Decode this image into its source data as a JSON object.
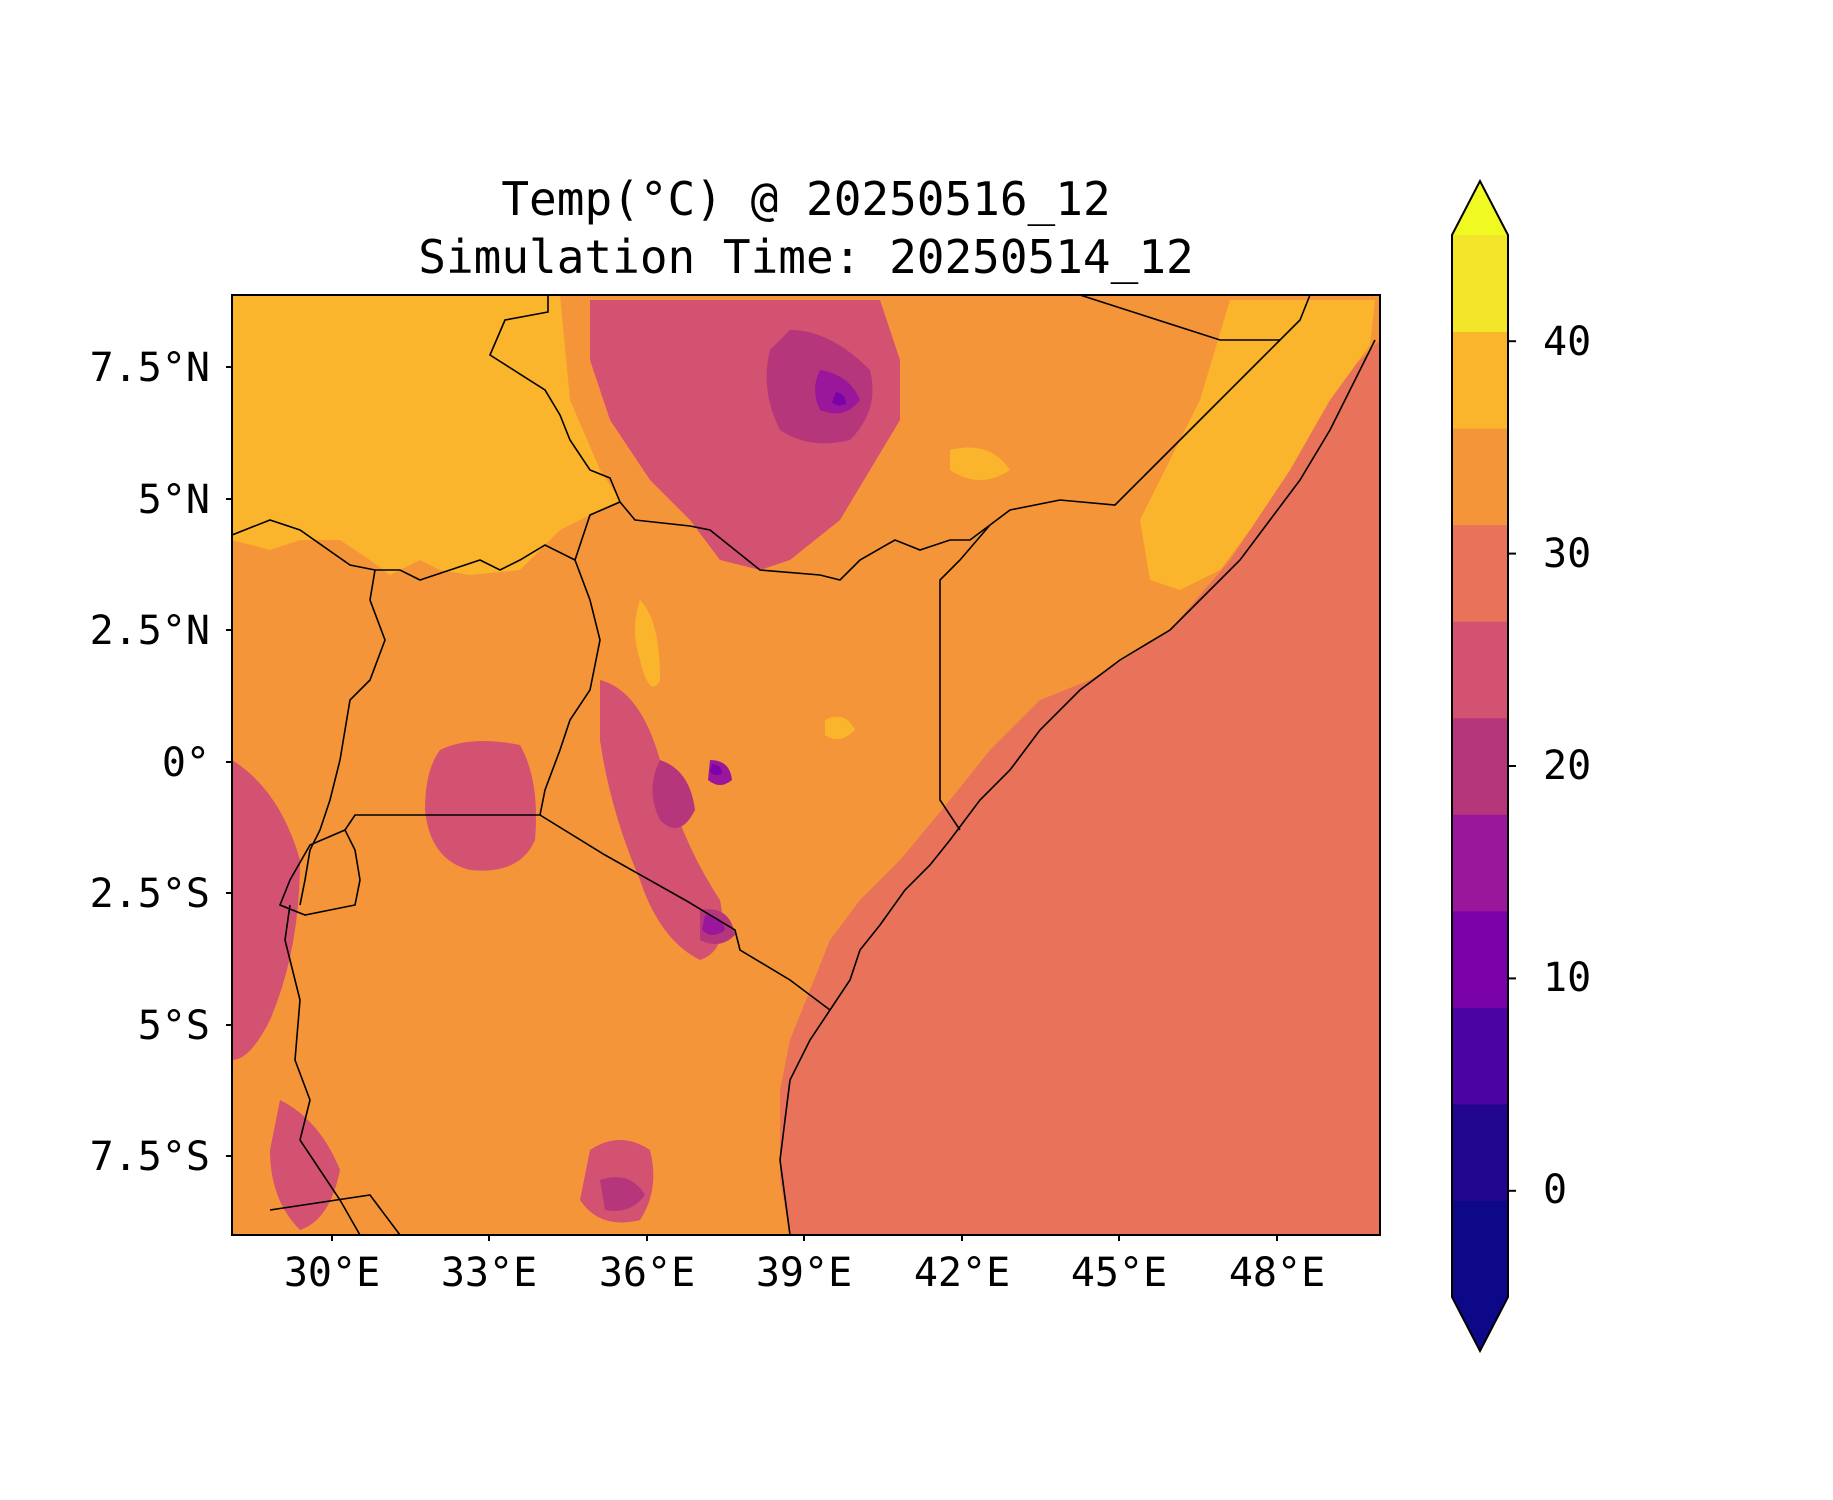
{
  "map": {
    "title_line1": "Temp(°C) @ 20250516_12",
    "title_line2": "Simulation Time: 20250514_12",
    "y_ticks": [
      "7.5°N",
      "5°N",
      "2.5°N",
      "0°",
      "2.5°S",
      "5°S",
      "7.5°S"
    ],
    "x_ticks": [
      "30°E",
      "33°E",
      "36°E",
      "39°E",
      "42°E",
      "45°E",
      "48°E"
    ],
    "extent": {
      "lon_min": 28.1,
      "lon_max": 50.0,
      "lat_min": -9.0,
      "lat_max": 8.9
    },
    "variable": "Temperature",
    "units": "°C"
  },
  "colorbar": {
    "ticks": [
      "0",
      "10",
      "20",
      "30",
      "40"
    ],
    "levels": [
      -5,
      0,
      5,
      10,
      15,
      20,
      25,
      30,
      35,
      40,
      45
    ],
    "colors": [
      "#0d0887",
      "#220690",
      "#4b03a1",
      "#7a02a8",
      "#9a179b",
      "#b5367a",
      "#d35171",
      "#e8735a",
      "#f5953a",
      "#fbb52c",
      "#f2e52a"
    ],
    "under_color": "#0d0887",
    "over_color": "#f0f921",
    "extend": "both"
  },
  "fill_colors": {
    "ocean": "#e8735a",
    "warm": "#f5953a",
    "hot": "#fbb52c",
    "mild": "#d35171",
    "cool": "#b5367a",
    "cold": "#9a179b",
    "coldest": "#7a02a8"
  }
}
